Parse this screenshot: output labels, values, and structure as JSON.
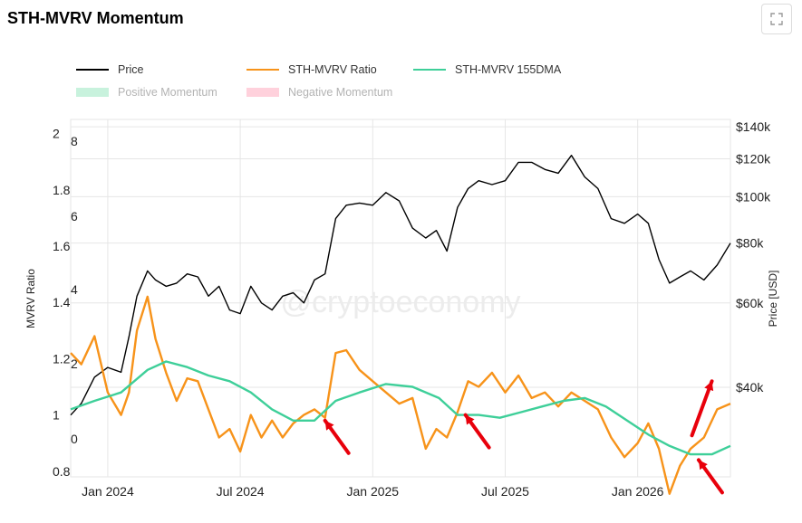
{
  "title": "STH-MVRV Momentum",
  "watermark": "@cryptoeconomy",
  "legend": [
    {
      "label": "Price",
      "color": "#000000",
      "kind": "line",
      "muted": false
    },
    {
      "label": "STH-MVRV Ratio",
      "color": "#f7931a",
      "kind": "line",
      "muted": false
    },
    {
      "label": "STH-MVRV 155DMA",
      "color": "#3ecf99",
      "kind": "line",
      "muted": false
    },
    {
      "label": "Positive Momentum",
      "color": "#c8f2dd",
      "kind": "box",
      "muted": true
    },
    {
      "label": "Negative Momentum",
      "color": "#ffd1dc",
      "kind": "box",
      "muted": true
    }
  ],
  "icons": {
    "expand": "expand-icon"
  },
  "chart_data": {
    "type": "line",
    "xlabel": "",
    "ylabel_left": "MVRV Ratio",
    "ylabel_right": "Price [USD]",
    "x_tick_labels": [
      "Jan 2024",
      "Jul 2024",
      "Jan 2025",
      "Jul 2025",
      "Jan 2026"
    ],
    "x_tick_dates": [
      2024.0,
      2024.5,
      2025.0,
      2025.5,
      2026.0
    ],
    "xlim": [
      2023.86,
      2026.35
    ],
    "left_ticks": [
      "2",
      "1.8",
      "1.6",
      "1.4",
      "1.2",
      "1",
      "0.8"
    ],
    "left_tick_values": [
      2.0,
      1.8,
      1.6,
      1.4,
      1.2,
      1.0,
      0.8
    ],
    "ylim_left": [
      0.78,
      2.05
    ],
    "left_overlay_ticks": [
      "8",
      "6",
      "4",
      "2",
      "0"
    ],
    "right_ticks": [
      "$140k",
      "$120k",
      "$100k",
      "$80k",
      "$60k",
      "$40k"
    ],
    "right_tick_values": [
      140000,
      120000,
      100000,
      80000,
      60000,
      40000
    ],
    "right_scale": "log",
    "ylim_right": [
      26000,
      145000
    ],
    "grid": true,
    "legend_position": "top-left",
    "series": [
      {
        "name": "Price",
        "color": "#000000",
        "axis": "right",
        "x": [
          2023.86,
          2023.9,
          2023.95,
          2024.0,
          2024.05,
          2024.08,
          2024.11,
          2024.15,
          2024.18,
          2024.22,
          2024.26,
          2024.3,
          2024.34,
          2024.38,
          2024.42,
          2024.46,
          2024.5,
          2024.54,
          2024.58,
          2024.62,
          2024.66,
          2024.7,
          2024.74,
          2024.78,
          2024.82,
          2024.86,
          2024.9,
          2024.95,
          2025.0,
          2025.05,
          2025.1,
          2025.15,
          2025.2,
          2025.24,
          2025.28,
          2025.32,
          2025.36,
          2025.4,
          2025.45,
          2025.5,
          2025.55,
          2025.6,
          2025.65,
          2025.7,
          2025.75,
          2025.8,
          2025.85,
          2025.9,
          2025.95,
          2026.0,
          2026.04,
          2026.08,
          2026.12,
          2026.16,
          2026.2,
          2026.25,
          2026.3,
          2026.35
        ],
        "y": [
          35000,
          37000,
          42000,
          44000,
          43000,
          51000,
          62000,
          70000,
          67000,
          65000,
          66000,
          69000,
          68000,
          62000,
          65000,
          58000,
          57000,
          65000,
          60000,
          58000,
          62000,
          63000,
          60000,
          67000,
          69000,
          90000,
          96000,
          97000,
          96000,
          102000,
          98000,
          86000,
          82000,
          85000,
          77000,
          95000,
          104000,
          108000,
          106000,
          108000,
          118000,
          118000,
          114000,
          112000,
          122000,
          110000,
          104000,
          90000,
          88000,
          92000,
          88000,
          74000,
          66000,
          68000,
          70000,
          67000,
          72000,
          80000
        ]
      },
      {
        "name": "STH-MVRV Ratio",
        "color": "#f7931a",
        "axis": "left",
        "x": [
          2023.86,
          2023.9,
          2023.95,
          2024.0,
          2024.05,
          2024.08,
          2024.11,
          2024.15,
          2024.18,
          2024.22,
          2024.26,
          2024.3,
          2024.34,
          2024.38,
          2024.42,
          2024.46,
          2024.5,
          2024.54,
          2024.58,
          2024.62,
          2024.66,
          2024.7,
          2024.74,
          2024.78,
          2024.82,
          2024.86,
          2024.9,
          2024.95,
          2025.0,
          2025.05,
          2025.1,
          2025.15,
          2025.2,
          2025.24,
          2025.28,
          2025.32,
          2025.36,
          2025.4,
          2025.45,
          2025.5,
          2025.55,
          2025.6,
          2025.65,
          2025.7,
          2025.75,
          2025.8,
          2025.85,
          2025.9,
          2025.95,
          2026.0,
          2026.04,
          2026.08,
          2026.12,
          2026.16,
          2026.2,
          2026.25,
          2026.3,
          2026.35
        ],
        "y": [
          1.22,
          1.18,
          1.28,
          1.08,
          1.0,
          1.08,
          1.3,
          1.42,
          1.27,
          1.15,
          1.05,
          1.13,
          1.12,
          1.02,
          0.92,
          0.95,
          0.87,
          1.0,
          0.92,
          0.98,
          0.92,
          0.97,
          1.0,
          1.02,
          0.99,
          1.22,
          1.23,
          1.16,
          1.12,
          1.08,
          1.04,
          1.06,
          0.88,
          0.95,
          0.92,
          1.01,
          1.12,
          1.1,
          1.15,
          1.08,
          1.14,
          1.06,
          1.08,
          1.03,
          1.08,
          1.05,
          1.02,
          0.92,
          0.85,
          0.9,
          0.97,
          0.88,
          0.72,
          0.82,
          0.88,
          0.92,
          1.02,
          1.04
        ]
      },
      {
        "name": "STH-MVRV 155DMA",
        "color": "#3ecf99",
        "axis": "left",
        "x": [
          2023.86,
          2023.95,
          2024.05,
          2024.15,
          2024.22,
          2024.3,
          2024.38,
          2024.46,
          2024.54,
          2024.62,
          2024.7,
          2024.78,
          2024.86,
          2024.95,
          2025.05,
          2025.15,
          2025.25,
          2025.32,
          2025.4,
          2025.48,
          2025.56,
          2025.64,
          2025.72,
          2025.8,
          2025.88,
          2025.96,
          2026.04,
          2026.12,
          2026.2,
          2026.28,
          2026.35
        ],
        "y": [
          1.02,
          1.05,
          1.08,
          1.16,
          1.19,
          1.17,
          1.14,
          1.12,
          1.08,
          1.02,
          0.98,
          0.98,
          1.05,
          1.08,
          1.11,
          1.1,
          1.06,
          1.0,
          1.0,
          0.99,
          1.01,
          1.03,
          1.05,
          1.06,
          1.03,
          0.98,
          0.93,
          0.89,
          0.86,
          0.86,
          0.89
        ]
      }
    ],
    "annotations": [
      {
        "type": "arrow",
        "color": "#e8000b",
        "direction": "up-left",
        "x": 2024.82,
        "y": 0.98
      },
      {
        "type": "arrow",
        "color": "#e8000b",
        "direction": "up-left",
        "x": 2025.35,
        "y": 1.0
      },
      {
        "type": "arrow",
        "color": "#e8000b",
        "direction": "up-right",
        "x": 2026.28,
        "y": 1.12
      },
      {
        "type": "arrow",
        "color": "#e8000b",
        "direction": "up-left",
        "x": 2026.23,
        "y": 0.84
      }
    ]
  }
}
